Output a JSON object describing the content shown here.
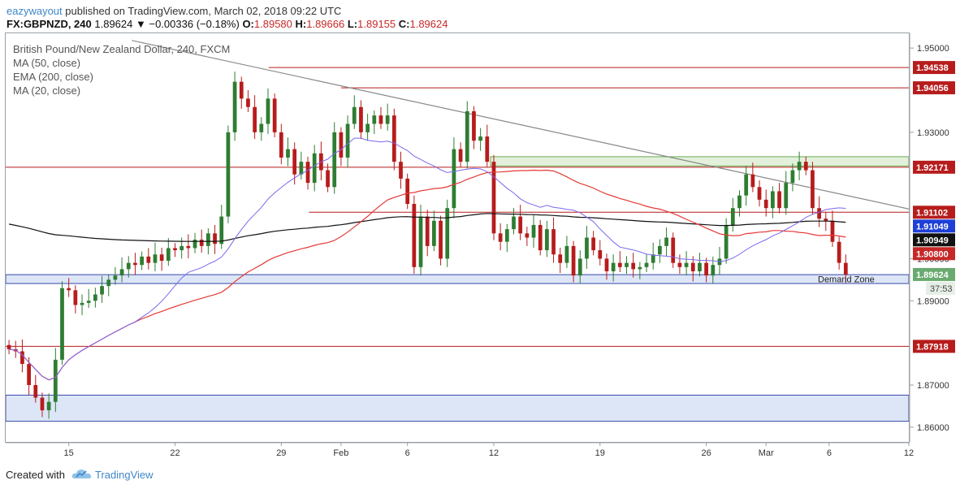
{
  "header": {
    "user": "eazywayout",
    "published_text": "published on TradingView.com, March 02, 2018 09:22 UTC",
    "symbol": "FX:GBPNZD, 240",
    "last": "1.89624",
    "change": "−0.00336 (−0.18%)",
    "o_label": "O:",
    "o_value": "1.89580",
    "h_label": "H:",
    "h_value": "1.89666",
    "l_label": "L:",
    "l_value": "1.89155",
    "c_label": "C:",
    "c_value": "1.89624"
  },
  "legend": {
    "title": "British Pound/New Zealand Dollar, 240, FXCM",
    "ind1": "MA (50, close)",
    "ind2": "EMA (200, close)",
    "ind3": "MA (20, close)"
  },
  "footer": {
    "created_with": "Created with",
    "brand": "TradingView"
  },
  "colors": {
    "bull": "#2e7d32",
    "bear": "#b71c1c",
    "ma20": "#7b68ee",
    "ma50": "#e53935",
    "ema200": "#111111",
    "resistance": "#b71c1c",
    "trendline": "#888888",
    "zone_fill": "#dde6f7",
    "zone_border": "#3949ab",
    "supply_fill": "#e3f1dc",
    "supply_border": "#6aa84f"
  },
  "chart_data": {
    "type": "candlestick",
    "symbol": "GBPNZD",
    "timeframe": "240",
    "y_range": [
      1.8565,
      1.9535
    ],
    "y_ticks": [
      {
        "value": 1.95,
        "label": "1.95000"
      },
      {
        "value": 1.93,
        "label": "1.93000"
      },
      {
        "value": 1.9,
        "label": "1.90000"
      },
      {
        "value": 1.89,
        "label": "1.89000"
      },
      {
        "value": 1.87,
        "label": "1.87000"
      },
      {
        "value": 1.86,
        "label": "1.86000"
      }
    ],
    "x_range": [
      0,
      136
    ],
    "x_ticks": [
      {
        "label": "15",
        "x": 9.5
      },
      {
        "label": "22",
        "x": 25.5
      },
      {
        "label": "29",
        "x": 41.5
      },
      {
        "label": "Feb",
        "x": 50.5
      },
      {
        "label": "6",
        "x": 60.5
      },
      {
        "label": "12",
        "x": 73.5
      },
      {
        "label": "19",
        "x": 89.5
      },
      {
        "label": "26",
        "x": 105.5
      },
      {
        "label": "Mar",
        "x": 114.5
      },
      {
        "label": "6",
        "x": 124
      },
      {
        "label": "12",
        "x": 136
      }
    ],
    "closes": [
      1.8785,
      1.878,
      1.875,
      1.87,
      1.867,
      1.864,
      1.866,
      1.876,
      1.893,
      1.8925,
      1.889,
      1.8895,
      1.89,
      1.8915,
      1.8935,
      1.895,
      1.896,
      1.8975,
      1.899,
      1.8985,
      1.9005,
      1.899,
      1.901,
      1.8995,
      1.9025,
      1.902,
      1.903,
      1.9025,
      1.9045,
      1.903,
      1.906,
      1.9035,
      1.91,
      1.93,
      1.942,
      1.938,
      1.936,
      1.93,
      1.932,
      1.938,
      1.93,
      1.924,
      1.926,
      1.92,
      1.923,
      1.918,
      1.925,
      1.921,
      1.917,
      1.93,
      1.924,
      1.932,
      1.936,
      1.93,
      1.932,
      1.934,
      1.932,
      1.934,
      1.923,
      1.919,
      1.913,
      1.898,
      1.91,
      1.903,
      1.909,
      1.9,
      1.912,
      1.926,
      1.923,
      1.935,
      1.928,
      1.929,
      1.923,
      1.906,
      1.904,
      1.907,
      1.91,
      1.906,
      1.905,
      1.908,
      1.902,
      1.907,
      1.901,
      1.899,
      1.903,
      1.896,
      1.9,
      1.905,
      1.902,
      1.9,
      1.897,
      1.899,
      1.898,
      1.899,
      1.8975,
      1.898,
      1.899,
      1.901,
      1.903,
      1.905,
      1.899,
      1.898,
      1.899,
      1.897,
      1.899,
      1.896,
      1.8985,
      1.9,
      1.908,
      1.912,
      1.915,
      1.92,
      1.917,
      1.914,
      1.912,
      1.916,
      1.912,
      1.918,
      1.921,
      1.923,
      1.921,
      1.912,
      1.9095,
      1.909,
      1.904,
      1.899,
      1.8962
    ],
    "levels": [
      1.94538,
      1.94056,
      1.92171,
      1.91102,
      1.87918
    ],
    "price_labels": [
      {
        "value": 1.94538,
        "label": "1.94538",
        "color": "#b71c1c"
      },
      {
        "value": 1.94056,
        "label": "1.94056",
        "color": "#b71c1c"
      },
      {
        "value": 1.92171,
        "label": "1.92171",
        "color": "#b71c1c"
      },
      {
        "value": 1.91102,
        "label": "1.91102",
        "color": "#b71c1c"
      },
      {
        "value": 1.91049,
        "label": "1.91049",
        "color": "#1e3fd8"
      },
      {
        "value": 1.90949,
        "label": "1.90949",
        "color": "#111111"
      },
      {
        "value": 1.908,
        "label": "1.90800",
        "color": "#c62828"
      },
      {
        "value": 1.89624,
        "label": "1.89624",
        "color": "#6aaa70"
      },
      {
        "value": 1.87918,
        "label": "1.87918",
        "color": "#b71c1c"
      }
    ],
    "countdown": "37:53",
    "demand_zone": {
      "top": 1.8962,
      "bottom": 1.8941,
      "label": "Demand Zone"
    },
    "lower_zone": {
      "top": 1.8676,
      "bottom": 1.8614
    },
    "supply_zone": {
      "top": 1.9242,
      "bottom": 1.922
    },
    "trendline": {
      "x1": 19,
      "y1": 1.9518,
      "x2": 136,
      "y2": 1.9118
    }
  }
}
